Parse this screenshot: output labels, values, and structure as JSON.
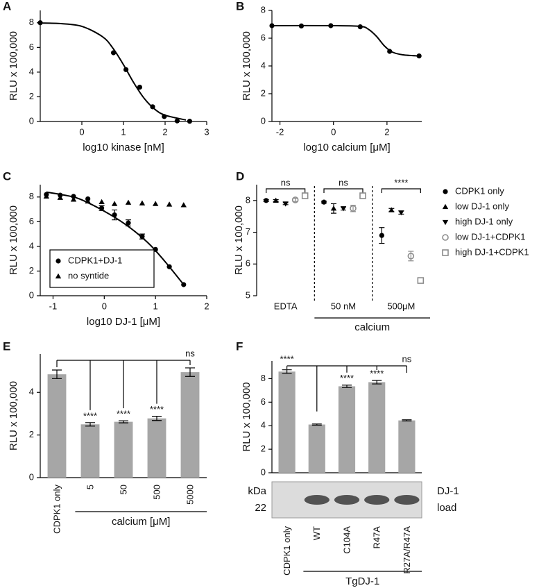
{
  "chart_data": [
    {
      "panel": "A",
      "type": "scatter",
      "xlabel": "log10 kinase [nM]",
      "ylabel": "RLU x 100,000",
      "xlim": [
        -1,
        3
      ],
      "xticks": [
        0,
        1,
        2,
        3
      ],
      "ylim": [
        0,
        9
      ],
      "yticks": [
        0,
        2,
        4,
        6,
        8
      ],
      "series": [
        {
          "color": "#000000",
          "marker": "circle",
          "x": [
            -1,
            0.76,
            1.06,
            1.39,
            1.7,
            1.98,
            2.29,
            2.59
          ],
          "values": [
            8.0,
            5.57,
            4.2,
            2.78,
            1.19,
            0.4,
            0.05,
            0.02
          ]
        }
      ],
      "fit": {
        "color": "#000000",
        "x": [
          -1,
          -0.5,
          0,
          0.5,
          0.75,
          1,
          1.25,
          1.5,
          1.75,
          2,
          2.5
        ],
        "values": [
          7.98,
          7.93,
          7.71,
          6.86,
          5.92,
          4.6,
          3.12,
          1.86,
          1.0,
          0.51,
          0.12
        ]
      }
    },
    {
      "panel": "B",
      "type": "scatter",
      "xlabel": "log10 calcium [μM]",
      "ylabel": "RLU x 100,000",
      "xlim": [
        -2.3,
        3.3
      ],
      "xticks": [
        -2,
        0,
        2
      ],
      "ylim": [
        0,
        8
      ],
      "yticks": [
        0,
        2,
        4,
        6,
        8
      ],
      "series": [
        {
          "color": "#000000",
          "marker": "circle",
          "x": [
            -2.3,
            -1.2,
            -0.1,
            1.0,
            2.1,
            3.2
          ],
          "values": [
            6.9,
            6.88,
            6.9,
            6.82,
            5.05,
            4.72
          ]
        }
      ],
      "fit": {
        "color": "#000000",
        "x": [
          -2.3,
          0,
          1.0,
          1.3,
          1.6,
          1.9,
          2.2,
          2.6,
          3.2
        ],
        "values": [
          6.9,
          6.9,
          6.85,
          6.65,
          6.15,
          5.45,
          5.0,
          4.8,
          4.72
        ]
      }
    },
    {
      "panel": "C",
      "type": "scatter",
      "xlabel": "log10 DJ-1 [μM]",
      "ylabel": "RLU x 100,000",
      "xlim": [
        -1.25,
        2
      ],
      "xticks": [
        -1,
        0,
        1,
        2
      ],
      "ylim": [
        0,
        9
      ],
      "yticks": [
        0,
        2,
        4,
        6,
        8
      ],
      "legend": "lower left",
      "series": [
        {
          "name": "CDPK1+DJ-1",
          "color": "#000000",
          "marker": "circle",
          "x": [
            -1.13,
            -0.86,
            -0.6,
            -0.32,
            -0.05,
            0.2,
            0.47,
            0.74,
            1.0,
            1.27,
            1.55
          ],
          "values": [
            8.2,
            8.15,
            8.05,
            7.85,
            7.1,
            6.55,
            5.9,
            4.8,
            3.75,
            2.35,
            0.9
          ],
          "errors": [
            null,
            null,
            null,
            null,
            0.2,
            0.4,
            0.25,
            0.2,
            null,
            null,
            null
          ]
        },
        {
          "name": "no syntide",
          "color": "#000000",
          "marker": "triangle",
          "x": [
            -1.13,
            -0.86,
            -0.6,
            -0.32,
            -0.05,
            0.2,
            0.47,
            0.74,
            1.0,
            1.27,
            1.55
          ],
          "values": [
            8.05,
            7.95,
            7.8,
            7.65,
            7.6,
            7.45,
            7.55,
            7.5,
            7.45,
            7.4,
            7.35
          ]
        }
      ],
      "fit": {
        "color": "#000000",
        "x": [
          -1.13,
          -0.6,
          -0.3,
          0,
          0.3,
          0.6,
          0.9,
          1.2,
          1.55
        ],
        "values": [
          8.4,
          8.0,
          7.5,
          6.85,
          6.1,
          5.2,
          4.1,
          2.7,
          0.9
        ]
      }
    },
    {
      "panel": "D",
      "type": "dot",
      "ylabel": "RLU x 100,000",
      "xlabel": "calcium",
      "categories": [
        "EDTA",
        "50 nM",
        "500μM"
      ],
      "ylim": [
        5,
        8.5
      ],
      "yticks": [
        5,
        6,
        7,
        8
      ],
      "legend": "right",
      "annotations": [
        "ns",
        "ns",
        "****"
      ],
      "series": [
        {
          "name": "CDPK1 only",
          "color": "#000000",
          "marker": "circle",
          "values": [
            8.0,
            7.95,
            6.9
          ],
          "errors": [
            0.03,
            0.03,
            0.25
          ]
        },
        {
          "name": "low DJ-1 only",
          "color": "#000000",
          "marker": "triangle",
          "values": [
            8.0,
            7.75,
            7.7
          ],
          "errors": [
            0.03,
            0.15,
            0.05
          ]
        },
        {
          "name": "high DJ-1 only",
          "color": "#000000",
          "marker": "triangle-down",
          "values": [
            7.9,
            7.75,
            7.62
          ],
          "errors": [
            0.03,
            0.05,
            0.05
          ]
        },
        {
          "name": "low DJ-1+CDPK1",
          "color": "#8c8c8c",
          "marker": "open-circle",
          "values": [
            8.02,
            7.75,
            6.25
          ],
          "errors": [
            0.05,
            0.1,
            0.15
          ]
        },
        {
          "name": "high DJ-1+CDPK1",
          "color": "#8c8c8c",
          "marker": "open-square",
          "values": [
            8.15,
            8.15,
            5.48
          ]
        }
      ]
    },
    {
      "panel": "E",
      "type": "bar",
      "ylabel": "RLU x 100,000",
      "xlabel": "calcium [μM]",
      "color": "#a6a6a6",
      "categories": [
        "CDPK1 only",
        "5",
        "50",
        "500",
        "5000"
      ],
      "values": [
        4.85,
        2.5,
        2.62,
        2.78,
        4.95
      ],
      "errors": [
        0.2,
        0.08,
        0.05,
        0.1,
        0.2
      ],
      "annotations": [
        null,
        "****",
        "****",
        "****",
        "ns"
      ],
      "ylim": [
        0,
        5.8
      ],
      "yticks": [
        0,
        2,
        4
      ]
    },
    {
      "panel": "F",
      "type": "bar",
      "ylabel": "RLU x 100,000",
      "xlabel": "TgDJ-1",
      "color": "#a6a6a6",
      "categories": [
        "CDPK1 only",
        "WT",
        "C104A",
        "R47A",
        "R27A/R47A"
      ],
      "values": [
        8.6,
        4.1,
        7.35,
        7.7,
        4.45
      ],
      "errors": [
        0.15,
        0.05,
        0.1,
        0.15,
        0.05
      ],
      "annotations": [
        "****",
        null,
        "****",
        "****",
        "ns"
      ],
      "ylim": [
        0,
        9.5
      ],
      "yticks": [
        0,
        2,
        4,
        6,
        8
      ],
      "blot": {
        "unit": "kDa",
        "marker": "22",
        "label": [
          "DJ-1",
          "load"
        ]
      }
    }
  ]
}
